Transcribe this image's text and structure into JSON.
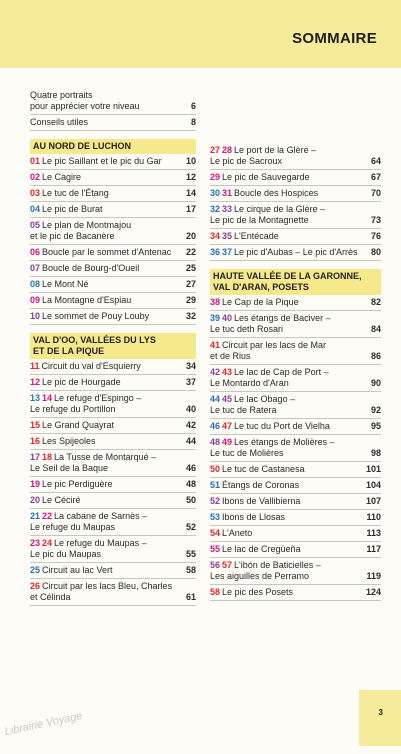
{
  "header": {
    "title": "SOMMAIRE"
  },
  "columns": [
    [
      {
        "entries": [
          {
            "numbers": [],
            "lines": [
              "Quatre portraits",
              "pour apprécier votre niveau"
            ],
            "page": 6
          },
          {
            "numbers": [],
            "lines": [
              "Conseils utiles"
            ],
            "page": 8
          }
        ]
      },
      {
        "heading": [
          "AU NORD DE LUCHON"
        ],
        "entries": [
          {
            "numbers": [
              {
                "n": "01",
                "color": "#e3262b"
              }
            ],
            "lines": [
              "Le pic Saillant et le pic du Gar"
            ],
            "page": 10
          },
          {
            "numbers": [
              {
                "n": "02",
                "color": "#d6137f"
              }
            ],
            "lines": [
              "Le Cagire"
            ],
            "page": 12
          },
          {
            "numbers": [
              {
                "n": "03",
                "color": "#e3262b"
              }
            ],
            "lines": [
              "Le tuc de l'Étang"
            ],
            "page": 14
          },
          {
            "numbers": [
              {
                "n": "04",
                "color": "#1f72b9"
              }
            ],
            "lines": [
              "Le pic de Burat"
            ],
            "page": 17
          },
          {
            "numbers": [
              {
                "n": "05",
                "color": "#8b3d96"
              }
            ],
            "lines": [
              "Le plan de Montmajou",
              "et le pic de Bacanère"
            ],
            "page": 20
          },
          {
            "numbers": [
              {
                "n": "06",
                "color": "#d6137f"
              }
            ],
            "lines": [
              "Boucle par le sommet d'Antenac"
            ],
            "page": 22
          },
          {
            "numbers": [
              {
                "n": "07",
                "color": "#8b3d96"
              }
            ],
            "lines": [
              "Boucle de Bourg-d'Oueil"
            ],
            "page": 25
          },
          {
            "numbers": [
              {
                "n": "08",
                "color": "#1f72b9"
              }
            ],
            "lines": [
              "Le Mont Né"
            ],
            "page": 27
          },
          {
            "numbers": [
              {
                "n": "09",
                "color": "#d6137f"
              }
            ],
            "lines": [
              "La Montagne d'Espiau"
            ],
            "page": 29
          },
          {
            "numbers": [
              {
                "n": "10",
                "color": "#8b3d96"
              }
            ],
            "lines": [
              "Le sommet de Pouy Louby"
            ],
            "page": 32
          }
        ]
      },
      {
        "heading": [
          "VAL D'OO, VALLÉES DU LYS",
          "ET DE LA PIQUE"
        ],
        "entries": [
          {
            "numbers": [
              {
                "n": "11",
                "color": "#e3262b"
              }
            ],
            "lines": [
              "Circuit du val d'Esquierry"
            ],
            "page": 34
          },
          {
            "numbers": [
              {
                "n": "12",
                "color": "#d6137f"
              }
            ],
            "lines": [
              "Le pic de Hourgade"
            ],
            "page": 37
          },
          {
            "numbers": [
              {
                "n": "13",
                "color": "#1f72b9"
              },
              {
                "n": "14",
                "color": "#d6137f"
              }
            ],
            "lines": [
              "Le refuge d'Espingo –",
              "Le refuge du Portillon"
            ],
            "page": 40
          },
          {
            "numbers": [
              {
                "n": "15",
                "color": "#e3262b"
              }
            ],
            "lines": [
              "Le Grand Quayrat"
            ],
            "page": 42
          },
          {
            "numbers": [
              {
                "n": "16",
                "color": "#e3262b"
              }
            ],
            "lines": [
              "Les Spijeoles"
            ],
            "page": 44
          },
          {
            "numbers": [
              {
                "n": "17",
                "color": "#8b3d96"
              },
              {
                "n": "18",
                "color": "#e3262b"
              }
            ],
            "lines": [
              "La Tusse de Montarqué –",
              "Le Seil de la Baque"
            ],
            "page": 46
          },
          {
            "numbers": [
              {
                "n": "19",
                "color": "#d6137f"
              }
            ],
            "lines": [
              "Le pic Perdiguère"
            ],
            "page": 48
          },
          {
            "numbers": [
              {
                "n": "20",
                "color": "#8b3d96"
              }
            ],
            "lines": [
              "Le Céciré"
            ],
            "page": 50
          },
          {
            "numbers": [
              {
                "n": "21",
                "color": "#1f72b9"
              },
              {
                "n": "22",
                "color": "#d6137f"
              }
            ],
            "lines": [
              "La cabane de Sarnès –",
              "Le refuge du Maupas"
            ],
            "page": 52
          },
          {
            "numbers": [
              {
                "n": "23",
                "color": "#d6137f"
              },
              {
                "n": "24",
                "color": "#e3262b"
              }
            ],
            "lines": [
              "Le refuge du Maupas –",
              "Le pic du Maupas"
            ],
            "page": 55
          },
          {
            "numbers": [
              {
                "n": "25",
                "color": "#1f72b9"
              }
            ],
            "lines": [
              "Circuit au lac Vert"
            ],
            "page": 58
          },
          {
            "numbers": [
              {
                "n": "26",
                "color": "#e3262b"
              }
            ],
            "lines": [
              "Circuit par les lacs Bleu, Charles",
              "et Célinda"
            ],
            "page": 61
          }
        ]
      }
    ],
    [
      {
        "entries": [
          {
            "numbers": [
              {
                "n": "27",
                "color": "#e3262b"
              },
              {
                "n": "28",
                "color": "#d6137f"
              }
            ],
            "lines": [
              "Le port de la Glère –",
              "Le pic de Sacroux"
            ],
            "page": 64
          },
          {
            "numbers": [
              {
                "n": "29",
                "color": "#d6137f"
              }
            ],
            "lines": [
              "Le pic de Sauvegarde"
            ],
            "page": 67
          },
          {
            "numbers": [
              {
                "n": "30",
                "color": "#1f72b9"
              },
              {
                "n": "31",
                "color": "#d6137f"
              }
            ],
            "lines": [
              "Boucle des Hospices"
            ],
            "page": 70
          },
          {
            "numbers": [
              {
                "n": "32",
                "color": "#1f72b9"
              },
              {
                "n": "33",
                "color": "#8b3d96"
              }
            ],
            "lines": [
              "Le cirque de la Glère –",
              "Le pic de la Montagnette"
            ],
            "page": 73
          },
          {
            "numbers": [
              {
                "n": "34",
                "color": "#e3262b"
              },
              {
                "n": "35",
                "color": "#8b3d96"
              }
            ],
            "lines": [
              "L'Entécade"
            ],
            "page": 76
          },
          {
            "numbers": [
              {
                "n": "36",
                "color": "#1f72b9"
              },
              {
                "n": "37",
                "color": "#1f72b9"
              }
            ],
            "lines": [
              "Le pic d'Aubas – Le pic d'Arrès"
            ],
            "page": 80
          }
        ]
      },
      {
        "heading": [
          "HAUTE VALLÉE DE LA GARONNE,",
          "VAL D'ARAN, POSETS"
        ],
        "entries": [
          {
            "numbers": [
              {
                "n": "38",
                "color": "#d6137f"
              }
            ],
            "lines": [
              "Le Cap de la Pique"
            ],
            "page": 82
          },
          {
            "numbers": [
              {
                "n": "39",
                "color": "#1f72b9"
              },
              {
                "n": "40",
                "color": "#8b3d96"
              }
            ],
            "lines": [
              "Les étangs de Baciver –",
              "Le tuc deth Rosari"
            ],
            "page": 84
          },
          {
            "numbers": [
              {
                "n": "41",
                "color": "#e3262b"
              }
            ],
            "lines": [
              "Circuit par les lacs de Mar",
              "et de Rius"
            ],
            "page": 86
          },
          {
            "numbers": [
              {
                "n": "42",
                "color": "#8b3d96"
              },
              {
                "n": "43",
                "color": "#e3262b"
              }
            ],
            "lines": [
              "Le lac de Cap de Port –",
              "Le Montardo d'Aran"
            ],
            "page": 90
          },
          {
            "numbers": [
              {
                "n": "44",
                "color": "#1f72b9"
              },
              {
                "n": "45",
                "color": "#8b3d96"
              }
            ],
            "lines": [
              "Le lac Obago –",
              "Le tuc de Ratera"
            ],
            "page": 92
          },
          {
            "numbers": [
              {
                "n": "46",
                "color": "#1f72b9"
              },
              {
                "n": "47",
                "color": "#e3262b"
              }
            ],
            "lines": [
              "Le tuc du Port de Vielha"
            ],
            "page": 95
          },
          {
            "numbers": [
              {
                "n": "48",
                "color": "#8b3d96"
              },
              {
                "n": "49",
                "color": "#d6137f"
              }
            ],
            "lines": [
              "Les étangs de Molières –",
              "Le tuc de Molières"
            ],
            "page": 98
          },
          {
            "numbers": [
              {
                "n": "50",
                "color": "#e3262b"
              }
            ],
            "lines": [
              "Le tuc de Castanesa"
            ],
            "page": 101
          },
          {
            "numbers": [
              {
                "n": "51",
                "color": "#1f72b9"
              }
            ],
            "lines": [
              "Étangs de Coronas"
            ],
            "page": 104
          },
          {
            "numbers": [
              {
                "n": "52",
                "color": "#8b3d96"
              }
            ],
            "lines": [
              "Ibons de Vallibierna"
            ],
            "page": 107
          },
          {
            "numbers": [
              {
                "n": "53",
                "color": "#1f72b9"
              }
            ],
            "lines": [
              "Ibons de Llosas"
            ],
            "page": 110
          },
          {
            "numbers": [
              {
                "n": "54",
                "color": "#e3262b"
              }
            ],
            "lines": [
              "L'Aneto"
            ],
            "page": 113
          },
          {
            "numbers": [
              {
                "n": "55",
                "color": "#d6137f"
              }
            ],
            "lines": [
              "Le lac de Cregüeña"
            ],
            "page": 117
          },
          {
            "numbers": [
              {
                "n": "56",
                "color": "#8b3d96"
              },
              {
                "n": "57",
                "color": "#e3262b"
              }
            ],
            "lines": [
              "L'ibón de Baticielles –",
              "Les aiguilles de Perramo"
            ],
            "page": 119
          },
          {
            "numbers": [
              {
                "n": "58",
                "color": "#e3262b"
              }
            ],
            "lines": [
              "Le pic des Posets"
            ],
            "page": 124
          }
        ]
      }
    ]
  ],
  "footer": {
    "page": 3,
    "watermark": "Librairie Voyage"
  }
}
